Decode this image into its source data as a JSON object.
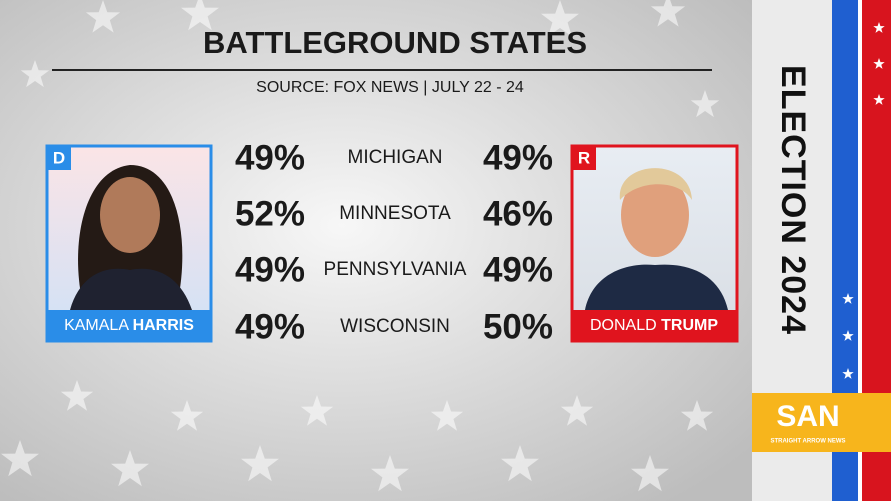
{
  "header": {
    "title": "BATTLEGROUND STATES",
    "source": "SOURCE: FOX NEWS | JULY 22 - 24"
  },
  "candidates": {
    "left": {
      "party": "D",
      "first": "KAMALA",
      "last": "HARRIS"
    },
    "right": {
      "party": "R",
      "first": "DONALD",
      "last": "TRUMP"
    }
  },
  "table": {
    "rows": [
      [
        "49%",
        "MICHIGAN",
        "49%"
      ],
      [
        "52%",
        "MINNESOTA",
        "46%"
      ],
      [
        "49%",
        "PENNSYLVANIA",
        "49%"
      ],
      [
        "49%",
        "WISCONSIN",
        "50%"
      ]
    ]
  },
  "sidebar": {
    "title": "ELECTION 2024",
    "logo": "SAN",
    "logo_sub": "STRAIGHT ARROW NEWS"
  }
}
